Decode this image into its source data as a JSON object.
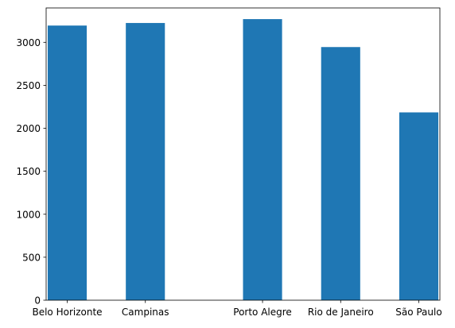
{
  "chart_data": {
    "type": "bar",
    "categories": [
      "Belo Horizonte",
      "Campinas",
      "Porto Alegre",
      "Rio de Janeiro",
      "São Paulo"
    ],
    "category_positions": [
      0,
      1,
      2.5,
      3.5,
      4.5
    ],
    "values": [
      3195,
      3225,
      3270,
      2945,
      2185
    ],
    "bar_color": "#1f77b4",
    "title": "",
    "xlabel": "",
    "ylabel": "",
    "ylim": [
      0,
      3400
    ],
    "yticks": [
      0,
      500,
      1000,
      1500,
      2000,
      2500,
      3000
    ],
    "grid": false,
    "legend": "none"
  }
}
